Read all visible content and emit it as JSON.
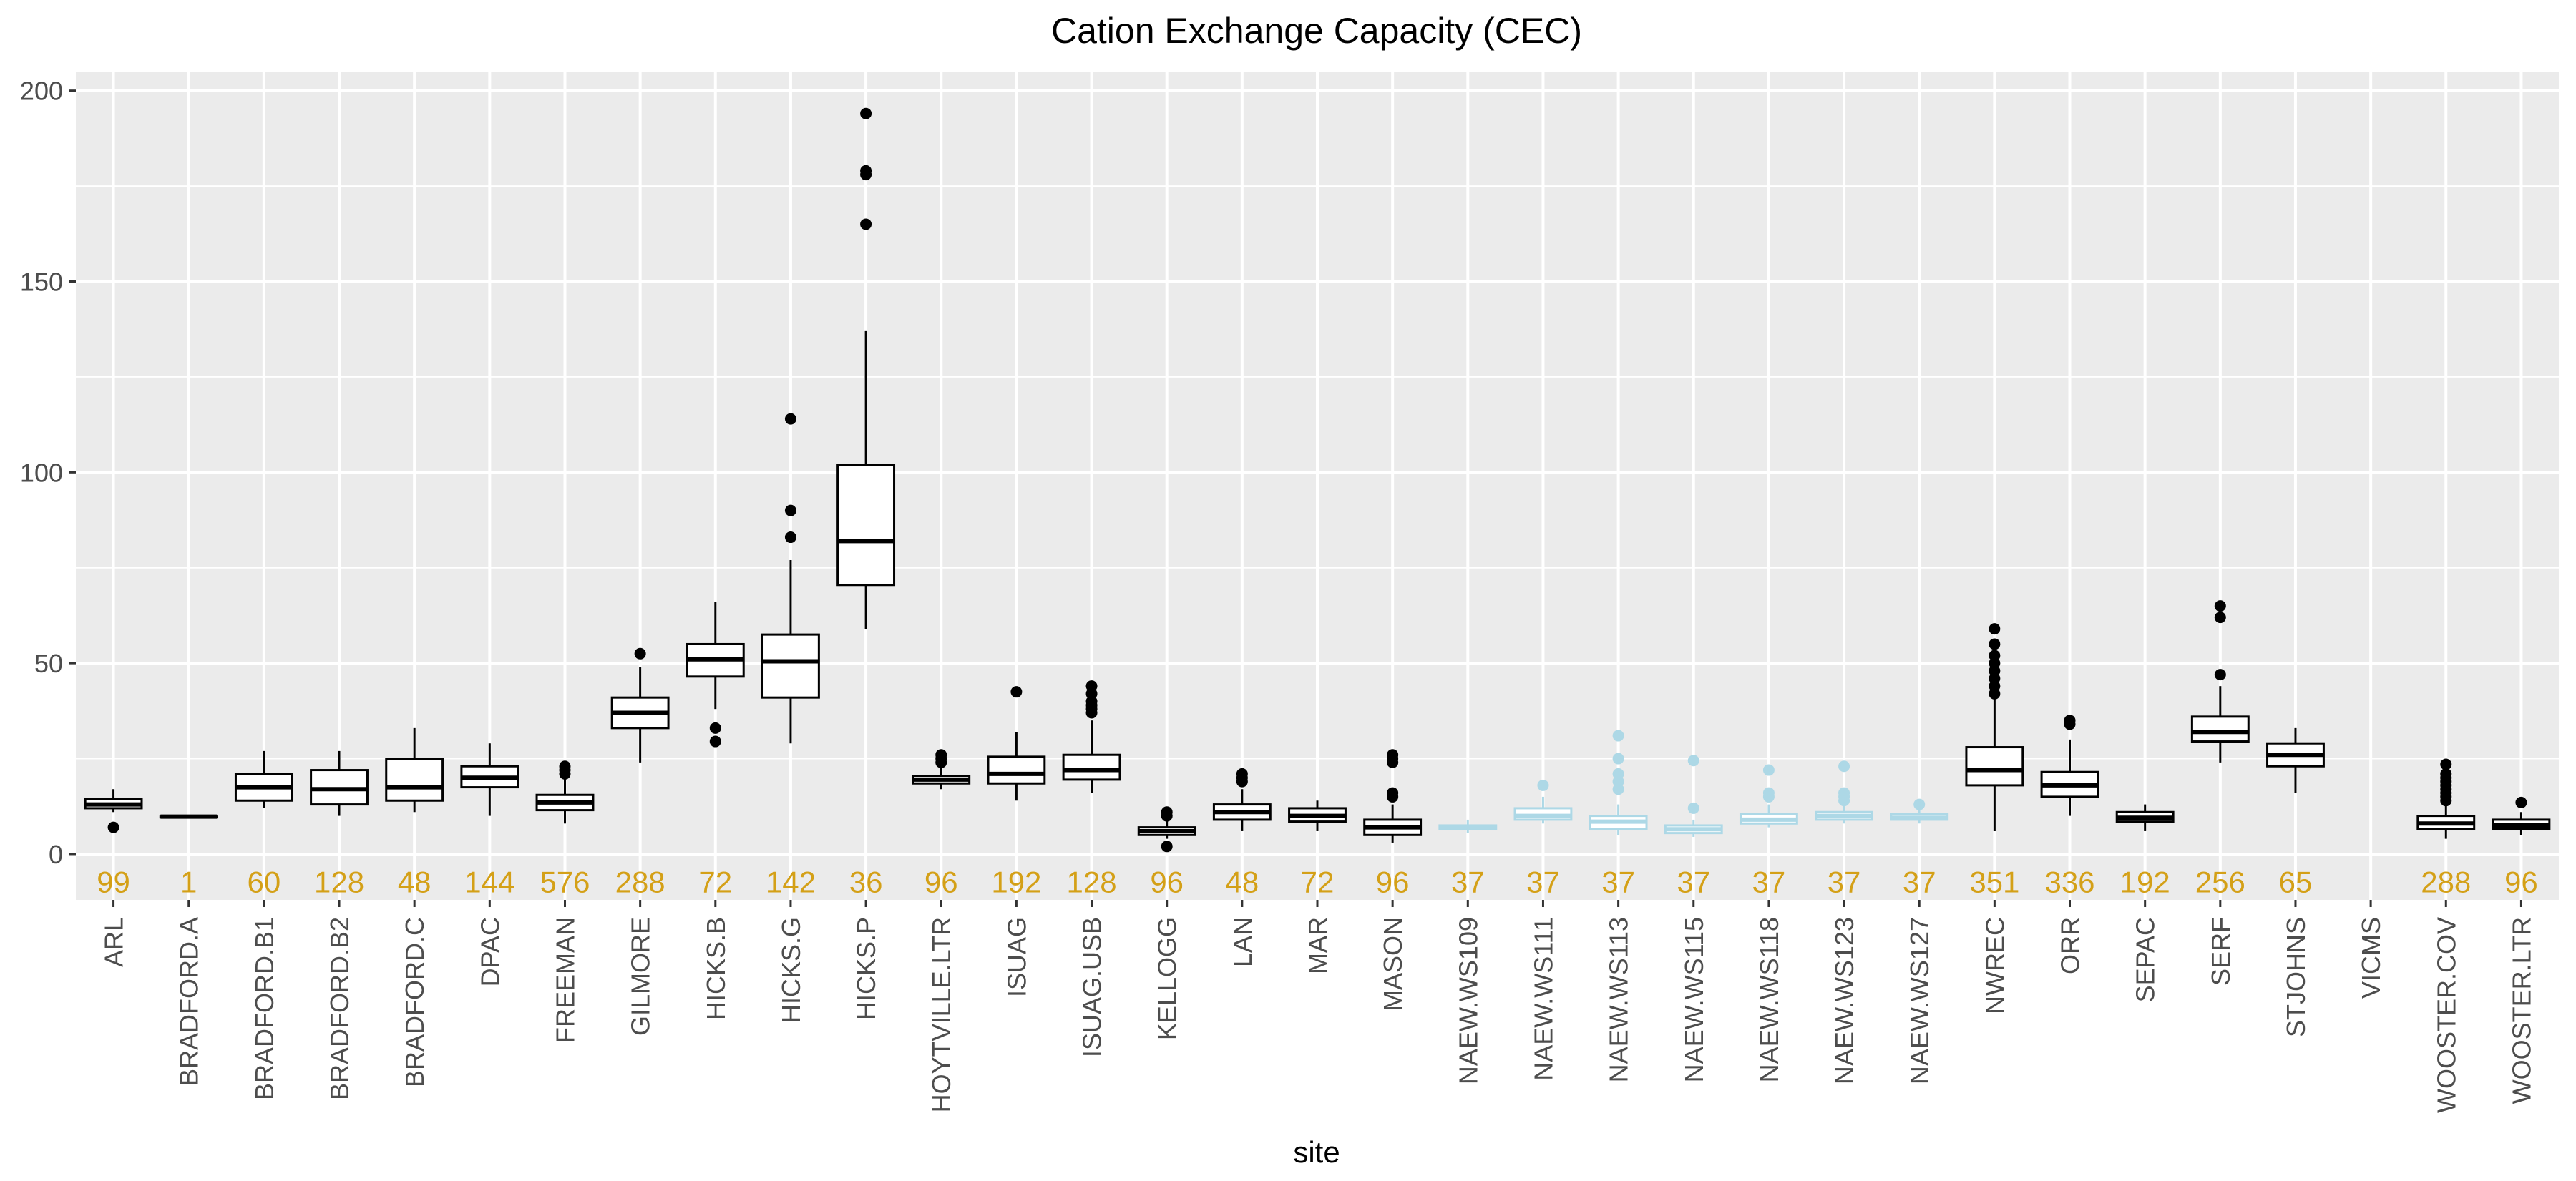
{
  "chart_data": {
    "type": "boxplot",
    "title": "Cation Exchange Capacity (CEC)",
    "xlabel": "site",
    "ylabel": "",
    "ylim": [
      -12,
      205
    ],
    "yticks": [
      0,
      50,
      100,
      150,
      200
    ],
    "grid": true,
    "legend": "none",
    "colors": {
      "panel": "#EBEBEB",
      "grid": "#FFFFFF",
      "box_default": "#000000",
      "box_highlight": "#ADD8E6",
      "count_label": "#D4A017",
      "tick_text": "#4D4D4D",
      "title_text": "#000000"
    },
    "categories": [
      "ARL",
      "BRADFORD.A",
      "BRADFORD.B1",
      "BRADFORD.B2",
      "BRADFORD.C",
      "DPAC",
      "FREEMAN",
      "GILMORE",
      "HICKS.B",
      "HICKS.G",
      "HICKS.P",
      "HOYTVILLE.LTR",
      "ISUAG",
      "ISUAG.USB",
      "KELLOGG",
      "LAN",
      "MAR",
      "MASON",
      "NAEW.WS109",
      "NAEW.WS111",
      "NAEW.WS113",
      "NAEW.WS115",
      "NAEW.WS118",
      "NAEW.WS123",
      "NAEW.WS127",
      "NWREC",
      "ORR",
      "SEPAC",
      "SERF",
      "STJOHNS",
      "VICMS",
      "WOOSTER.COV",
      "WOOSTER.LTR"
    ],
    "counts": [
      "99",
      "1",
      "60",
      "128",
      "48",
      "144",
      "576",
      "288",
      "72",
      "142",
      "36",
      "96",
      "192",
      "128",
      "96",
      "48",
      "72",
      "96",
      "37",
      "37",
      "37",
      "37",
      "37",
      "37",
      "37",
      "351",
      "336",
      "192",
      "256",
      "65",
      "",
      "288",
      "96"
    ],
    "boxes": [
      {
        "site": "ARL",
        "min": 11,
        "q1": 12,
        "median": 13,
        "q3": 14.5,
        "max": 17,
        "outliers": [
          7
        ],
        "highlight": false
      },
      {
        "site": "BRADFORD.A",
        "min": 9.8,
        "q1": 9.8,
        "median": 9.8,
        "q3": 9.8,
        "max": 9.8,
        "outliers": [],
        "highlight": false
      },
      {
        "site": "BRADFORD.B1",
        "min": 12,
        "q1": 14,
        "median": 17.5,
        "q3": 21,
        "max": 27,
        "outliers": [],
        "highlight": false
      },
      {
        "site": "BRADFORD.B2",
        "min": 10,
        "q1": 13,
        "median": 17,
        "q3": 22,
        "max": 27,
        "outliers": [],
        "highlight": false
      },
      {
        "site": "BRADFORD.C",
        "min": 11,
        "q1": 14,
        "median": 17.5,
        "q3": 25,
        "max": 33,
        "outliers": [],
        "highlight": false
      },
      {
        "site": "DPAC",
        "min": 10,
        "q1": 17.5,
        "median": 20,
        "q3": 23,
        "max": 29,
        "outliers": [],
        "highlight": false
      },
      {
        "site": "FREEMAN",
        "min": 8,
        "q1": 11.5,
        "median": 13.5,
        "q3": 15.5,
        "max": 20,
        "outliers": [
          21,
          22,
          23
        ],
        "highlight": false
      },
      {
        "site": "GILMORE",
        "min": 24,
        "q1": 33,
        "median": 37,
        "q3": 41,
        "max": 49,
        "outliers": [
          52.5
        ],
        "highlight": false
      },
      {
        "site": "HICKS.B",
        "min": 38,
        "q1": 46.5,
        "median": 51,
        "q3": 55,
        "max": 66,
        "outliers": [
          33,
          29.5
        ],
        "highlight": false
      },
      {
        "site": "HICKS.G",
        "min": 29,
        "q1": 41,
        "median": 50.5,
        "q3": 57.5,
        "max": 77,
        "outliers": [
          83,
          90,
          114
        ],
        "highlight": false
      },
      {
        "site": "HICKS.P",
        "min": 59,
        "q1": 70.5,
        "median": 82,
        "q3": 102,
        "max": 137,
        "outliers": [
          165,
          178,
          179,
          194
        ],
        "highlight": false
      },
      {
        "site": "HOYTVILLE.LTR",
        "min": 17,
        "q1": 18.5,
        "median": 19.5,
        "q3": 20.5,
        "max": 23,
        "outliers": [
          24,
          25,
          26
        ],
        "highlight": false
      },
      {
        "site": "ISUAG",
        "min": 14,
        "q1": 18.5,
        "median": 21,
        "q3": 25.5,
        "max": 32,
        "outliers": [
          42.5
        ],
        "highlight": false
      },
      {
        "site": "ISUAG.USB",
        "min": 16,
        "q1": 19.5,
        "median": 22,
        "q3": 26,
        "max": 35,
        "outliers": [
          37,
          38,
          39,
          40,
          42,
          44
        ],
        "highlight": false
      },
      {
        "site": "KELLOGG",
        "min": 4,
        "q1": 5,
        "median": 6,
        "q3": 7,
        "max": 9,
        "outliers": [
          10,
          11,
          2
        ],
        "highlight": false
      },
      {
        "site": "LAN",
        "min": 6,
        "q1": 9,
        "median": 11,
        "q3": 13,
        "max": 17,
        "outliers": [
          19,
          20,
          21
        ],
        "highlight": false
      },
      {
        "site": "MAR",
        "min": 6,
        "q1": 8.5,
        "median": 10,
        "q3": 12,
        "max": 14,
        "outliers": [],
        "highlight": false
      },
      {
        "site": "MASON",
        "min": 3,
        "q1": 5,
        "median": 7,
        "q3": 9,
        "max": 13,
        "outliers": [
          15,
          16,
          24,
          25,
          26
        ],
        "highlight": false
      },
      {
        "site": "NAEW.WS109",
        "min": 5.5,
        "q1": 6.5,
        "median": 7,
        "q3": 7.5,
        "max": 9,
        "outliers": [],
        "highlight": true
      },
      {
        "site": "NAEW.WS111",
        "min": 8,
        "q1": 9,
        "median": 10,
        "q3": 12,
        "max": 15,
        "outliers": [
          18
        ],
        "highlight": true
      },
      {
        "site": "NAEW.WS113",
        "min": 5,
        "q1": 6.5,
        "median": 8.5,
        "q3": 10,
        "max": 13,
        "outliers": [
          17,
          19,
          21,
          25,
          31
        ],
        "highlight": true
      },
      {
        "site": "NAEW.WS115",
        "min": 4.5,
        "q1": 5.5,
        "median": 6.5,
        "q3": 7.5,
        "max": 9,
        "outliers": [
          12,
          24.5
        ],
        "highlight": true
      },
      {
        "site": "NAEW.WS118",
        "min": 7,
        "q1": 8,
        "median": 9,
        "q3": 10.5,
        "max": 13,
        "outliers": [
          15,
          16,
          22
        ],
        "highlight": true
      },
      {
        "site": "NAEW.WS123",
        "min": 8,
        "q1": 9,
        "median": 10,
        "q3": 11,
        "max": 13,
        "outliers": [
          14,
          15,
          16,
          23
        ],
        "highlight": true
      },
      {
        "site": "NAEW.WS127",
        "min": 8,
        "q1": 9,
        "median": 9.5,
        "q3": 10.5,
        "max": 12,
        "outliers": [
          13
        ],
        "highlight": true
      },
      {
        "site": "NWREC",
        "min": 6,
        "q1": 18,
        "median": 22,
        "q3": 28,
        "max": 41,
        "outliers": [
          42,
          44,
          46,
          48,
          50,
          52,
          55,
          59
        ],
        "highlight": false
      },
      {
        "site": "ORR",
        "min": 10,
        "q1": 15,
        "median": 18,
        "q3": 21.5,
        "max": 30,
        "outliers": [
          34,
          35
        ],
        "highlight": false
      },
      {
        "site": "SEPAC",
        "min": 6,
        "q1": 8.5,
        "median": 9.5,
        "q3": 11,
        "max": 13,
        "outliers": [],
        "highlight": false
      },
      {
        "site": "SERF",
        "min": 24,
        "q1": 29.5,
        "median": 32,
        "q3": 36,
        "max": 44,
        "outliers": [
          47,
          62,
          65
        ],
        "highlight": false
      },
      {
        "site": "STJOHNS",
        "min": 16,
        "q1": 23,
        "median": 26,
        "q3": 29,
        "max": 33,
        "outliers": [],
        "highlight": false
      },
      {
        "site": "VICMS",
        "empty": true,
        "highlight": false
      },
      {
        "site": "WOOSTER.COV",
        "min": 4,
        "q1": 6.5,
        "median": 8,
        "q3": 10,
        "max": 13,
        "outliers": [
          14,
          15,
          16,
          17,
          18,
          19,
          20,
          21,
          23.5
        ],
        "highlight": false
      },
      {
        "site": "WOOSTER.LTR",
        "min": 5,
        "q1": 6.5,
        "median": 7.5,
        "q3": 9,
        "max": 11,
        "outliers": [
          13.5
        ],
        "highlight": false
      }
    ]
  }
}
